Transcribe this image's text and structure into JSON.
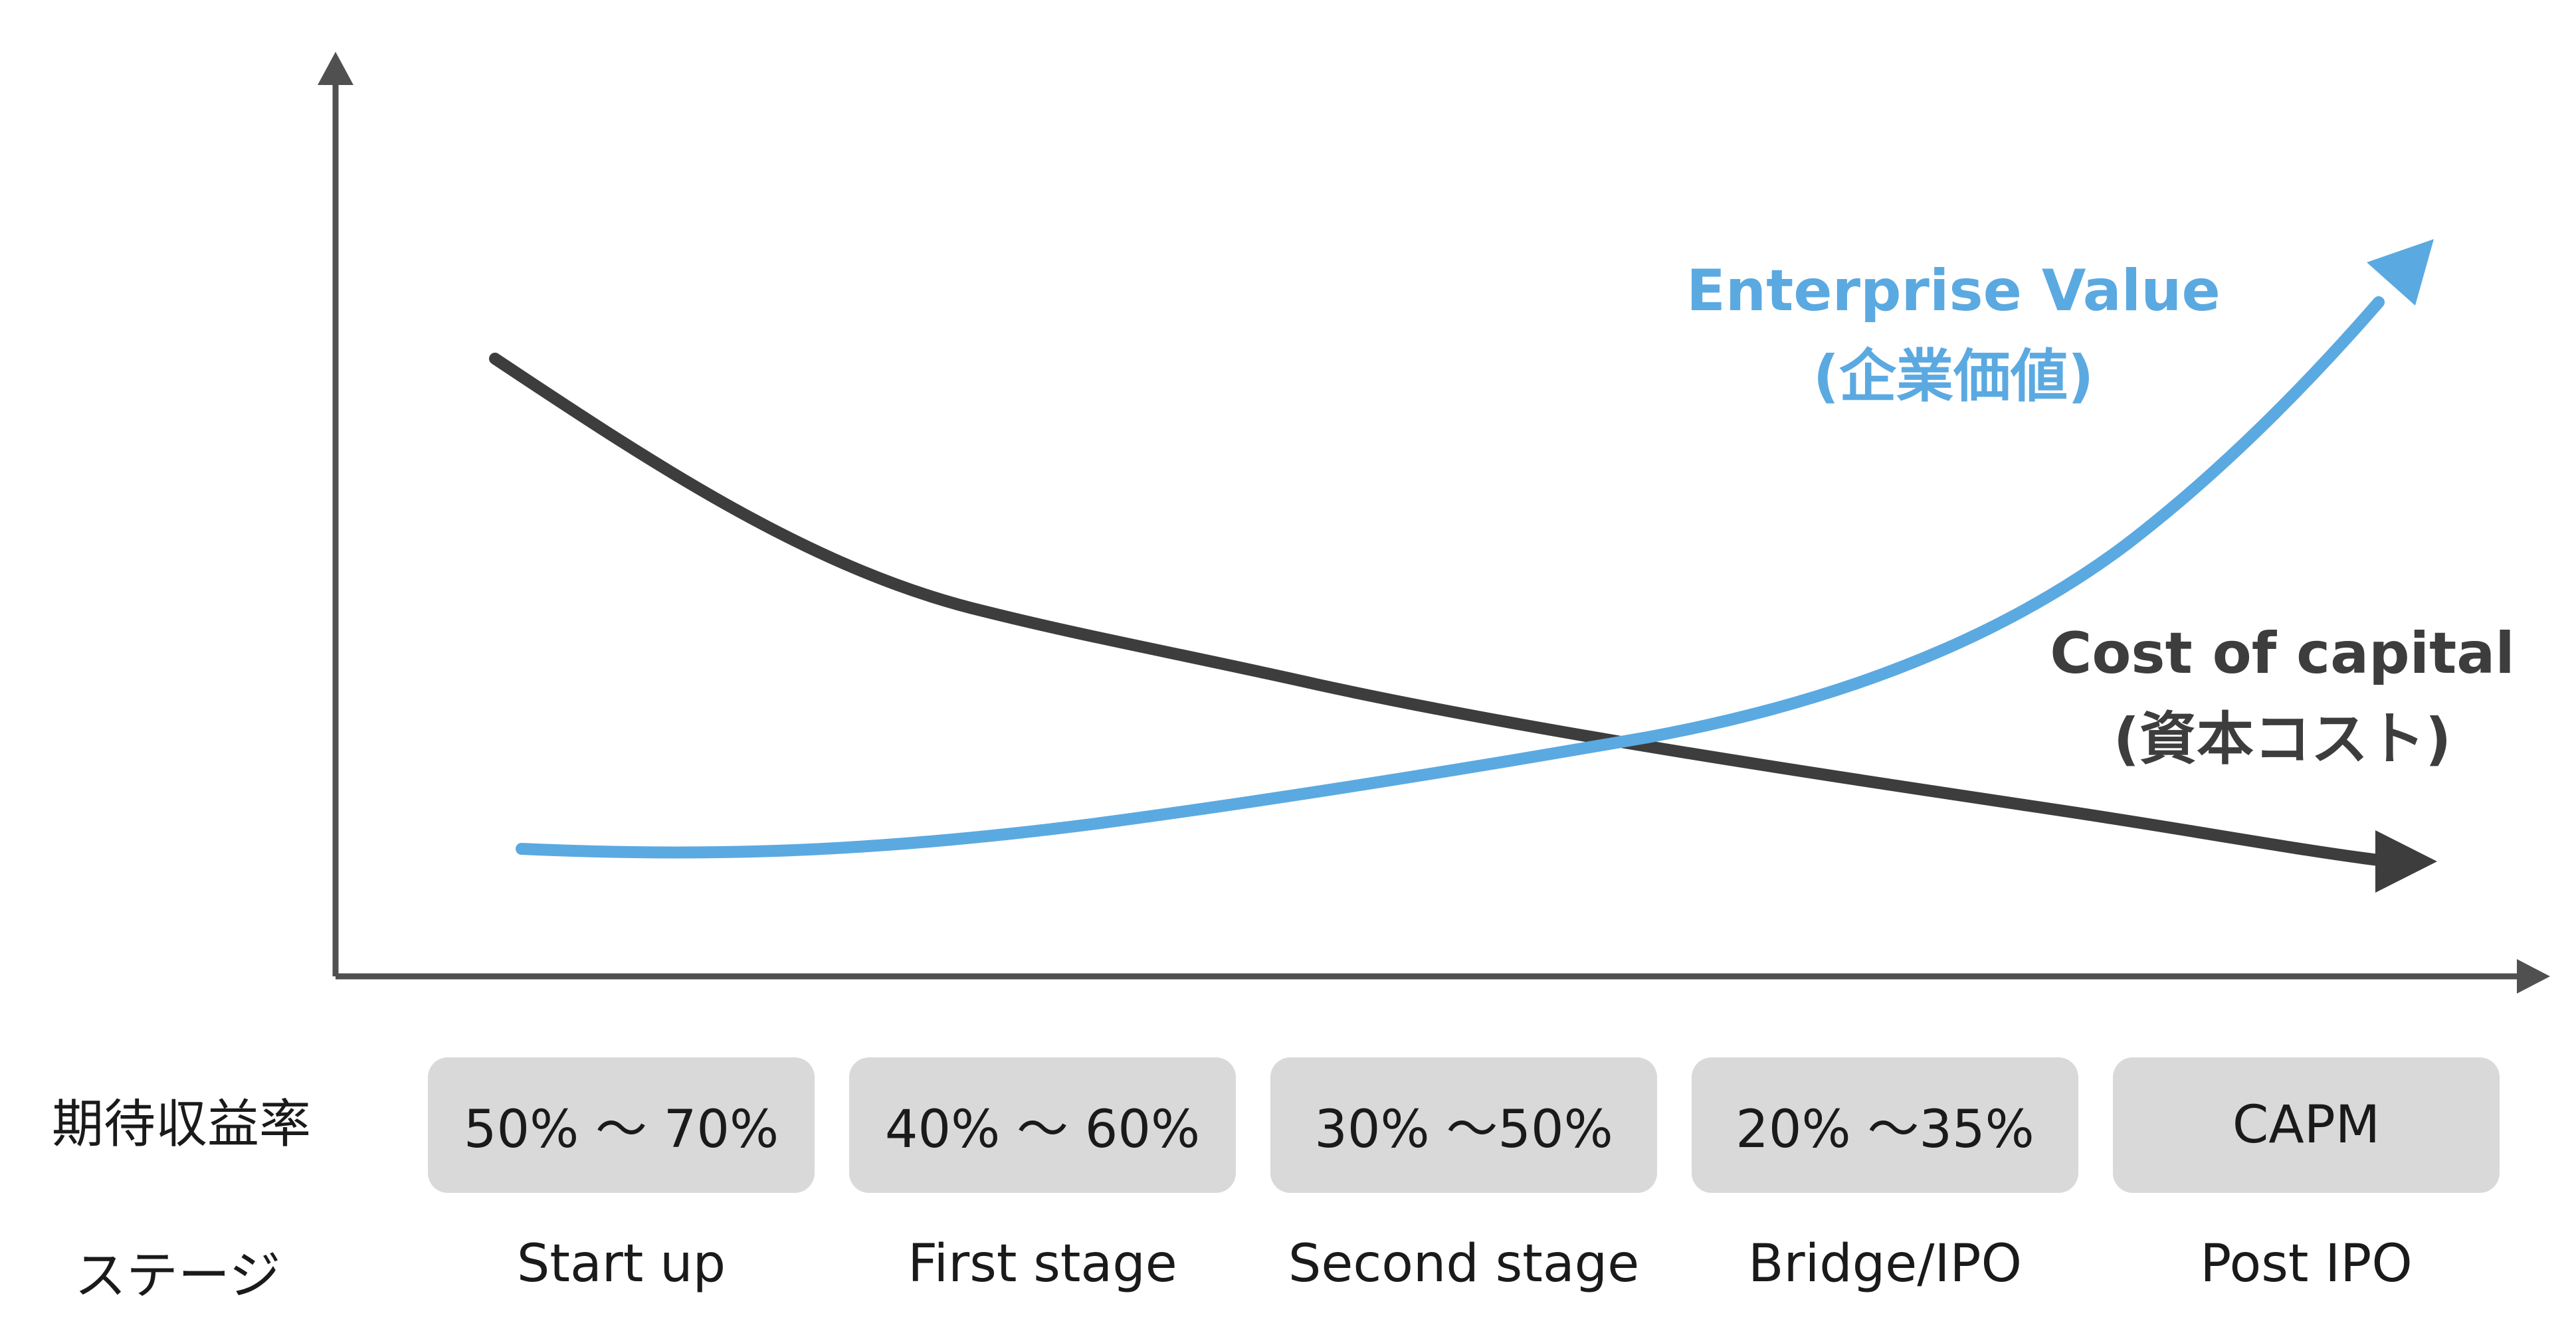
{
  "curves": {
    "enterprise_value": {
      "label_en": "Enterprise Value",
      "label_ja": "(企業価値)",
      "color": "#5ba9e1"
    },
    "cost_of_capital": {
      "label_en": "Cost of capital",
      "label_ja": "(資本コスト)",
      "color": "#3d3d3d"
    }
  },
  "axis_color": "#505050",
  "rows": {
    "expected_return_label": "期待収益率",
    "stage_label": "ステージ"
  },
  "stages": [
    {
      "rate": "50% ～ 70%",
      "name": "Start up"
    },
    {
      "rate": "40% ～ 60%",
      "name": "First stage"
    },
    {
      "rate": "30% ～50%",
      "name": "Second stage"
    },
    {
      "rate": "20% ～35%",
      "name": "Bridge/IPO"
    },
    {
      "rate": "CAPM",
      "name": "Post IPO"
    }
  ],
  "box_color": "#d9d9d9"
}
